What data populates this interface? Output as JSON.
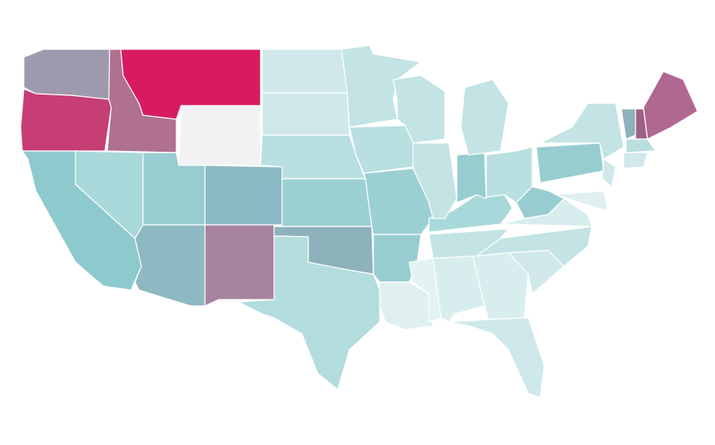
{
  "map": {
    "colors": [
      "#9e9aae",
      "#c63e74",
      "#b07090",
      "#d81b60",
      "#f2f2f4",
      "#cfe8ea",
      "#d0e8ea",
      "#b9dfe0",
      "#a8d8d9",
      "#8ecacd",
      "#97cdd1",
      "#8bb9c3",
      "#9bd0d3",
      "#8eb8c2",
      "#a6849e",
      "#8eb2bb",
      "#b3dcdd",
      "#c3e3e5",
      "#e0f0f1",
      "#e3f2f3",
      "#d8eeee",
      "#a06086",
      "#b06890"
    ]
  }
}
